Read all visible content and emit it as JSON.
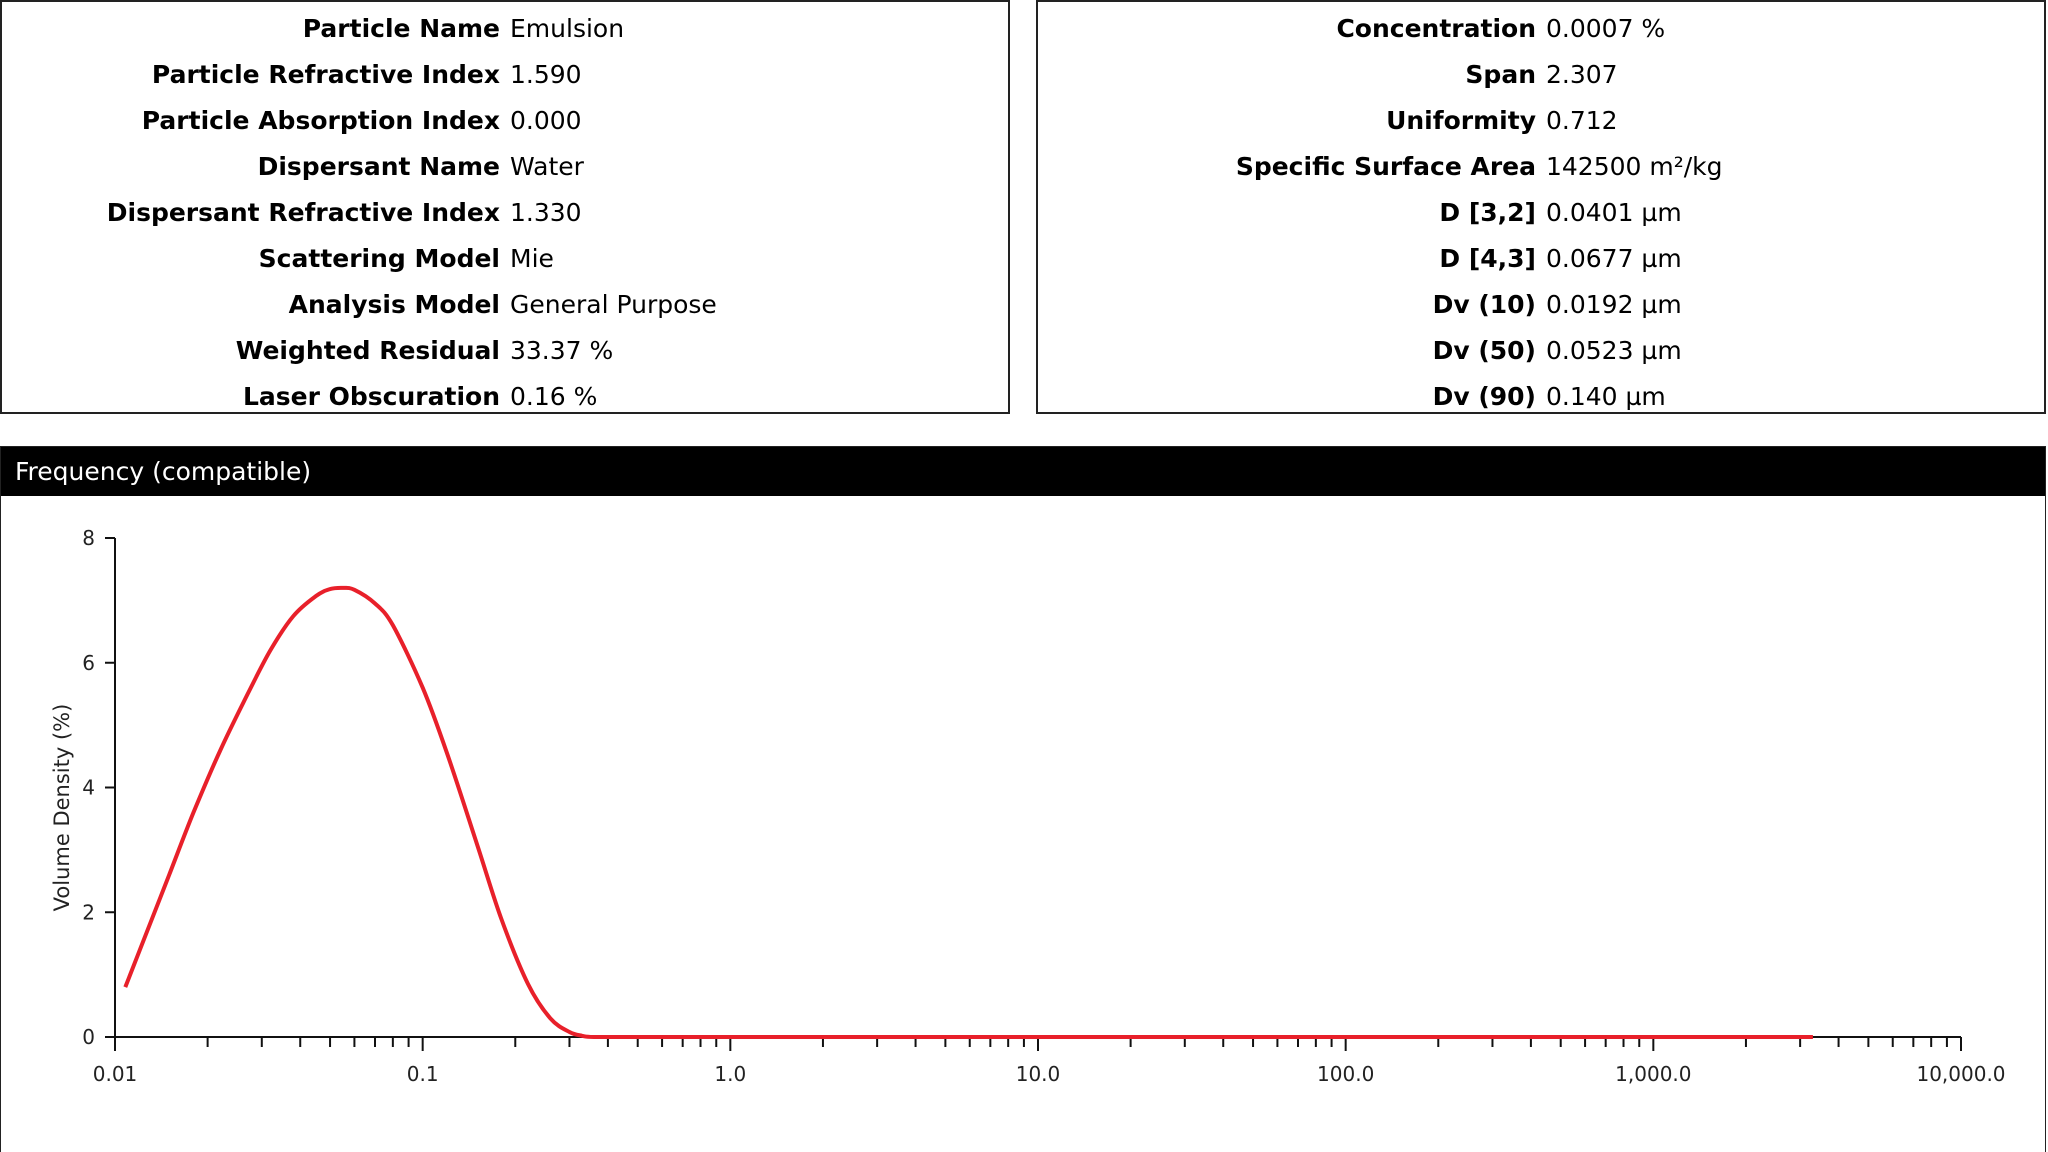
{
  "left_panel": {
    "rows": [
      {
        "label": "Particle Name",
        "value": "Emulsion"
      },
      {
        "label": "Particle Refractive Index",
        "value": "1.590"
      },
      {
        "label": "Particle Absorption Index",
        "value": "0.000"
      },
      {
        "label": "Dispersant Name",
        "value": "Water"
      },
      {
        "label": "Dispersant Refractive Index",
        "value": "1.330"
      },
      {
        "label": "Scattering Model",
        "value": "Mie"
      },
      {
        "label": "Analysis Model",
        "value": "General Purpose"
      },
      {
        "label": "Weighted Residual",
        "value": "33.37 %"
      },
      {
        "label": "Laser Obscuration",
        "value": "0.16 %"
      }
    ]
  },
  "right_panel": {
    "rows": [
      {
        "label": "Concentration",
        "value": "0.0007 %"
      },
      {
        "label": "Span",
        "value": "2.307"
      },
      {
        "label": "Uniformity",
        "value": "0.712"
      },
      {
        "label": "Specific Surface Area",
        "value": "142500 m²/kg"
      },
      {
        "label": "D [3,2]",
        "value": "0.0401 µm"
      },
      {
        "label": "D [4,3]",
        "value": "0.0677 µm"
      },
      {
        "label": "Dv (10)",
        "value": "0.0192 µm"
      },
      {
        "label": "Dv (50)",
        "value": "0.0523 µm"
      },
      {
        "label": "Dv (90)",
        "value": "0.140 µm"
      }
    ]
  },
  "chart_header": {
    "title": "Frequency (compatible)"
  },
  "chart_data": {
    "type": "line",
    "title": "Frequency (compatible)",
    "xlabel": "",
    "ylabel": "Volume Density (%)",
    "x_scale": "log",
    "xlim": [
      0.01,
      10000
    ],
    "ylim": [
      0,
      8
    ],
    "x_ticks": [
      0.01,
      0.1,
      1,
      10,
      100,
      1000,
      10000
    ],
    "x_tick_labels": [
      "0.01",
      "0.1",
      "1.0",
      "10.0",
      "100.0",
      "1,000.0",
      "10,000.0"
    ],
    "y_ticks": [
      0,
      2,
      4,
      6,
      8
    ],
    "y_tick_labels": [
      "0",
      "2",
      "4",
      "6",
      "8"
    ],
    "grid": false,
    "series_color": "#e8202a",
    "series": [
      {
        "name": "",
        "x": [
          0.0108,
          0.0125,
          0.015,
          0.018,
          0.022,
          0.027,
          0.032,
          0.038,
          0.045,
          0.05,
          0.055,
          0.06,
          0.07,
          0.08,
          0.1,
          0.12,
          0.15,
          0.18,
          0.22,
          0.26,
          0.3,
          0.33,
          0.36,
          0.5,
          1,
          10,
          100,
          1000,
          3300
        ],
        "y": [
          0.8,
          1.6,
          2.6,
          3.6,
          4.6,
          5.5,
          6.2,
          6.75,
          7.07,
          7.18,
          7.2,
          7.17,
          6.95,
          6.6,
          5.6,
          4.55,
          3.1,
          1.9,
          0.85,
          0.3,
          0.08,
          0.02,
          0.0,
          0.0,
          0.0,
          0.0,
          0.0,
          0.0,
          0.0
        ]
      }
    ]
  }
}
